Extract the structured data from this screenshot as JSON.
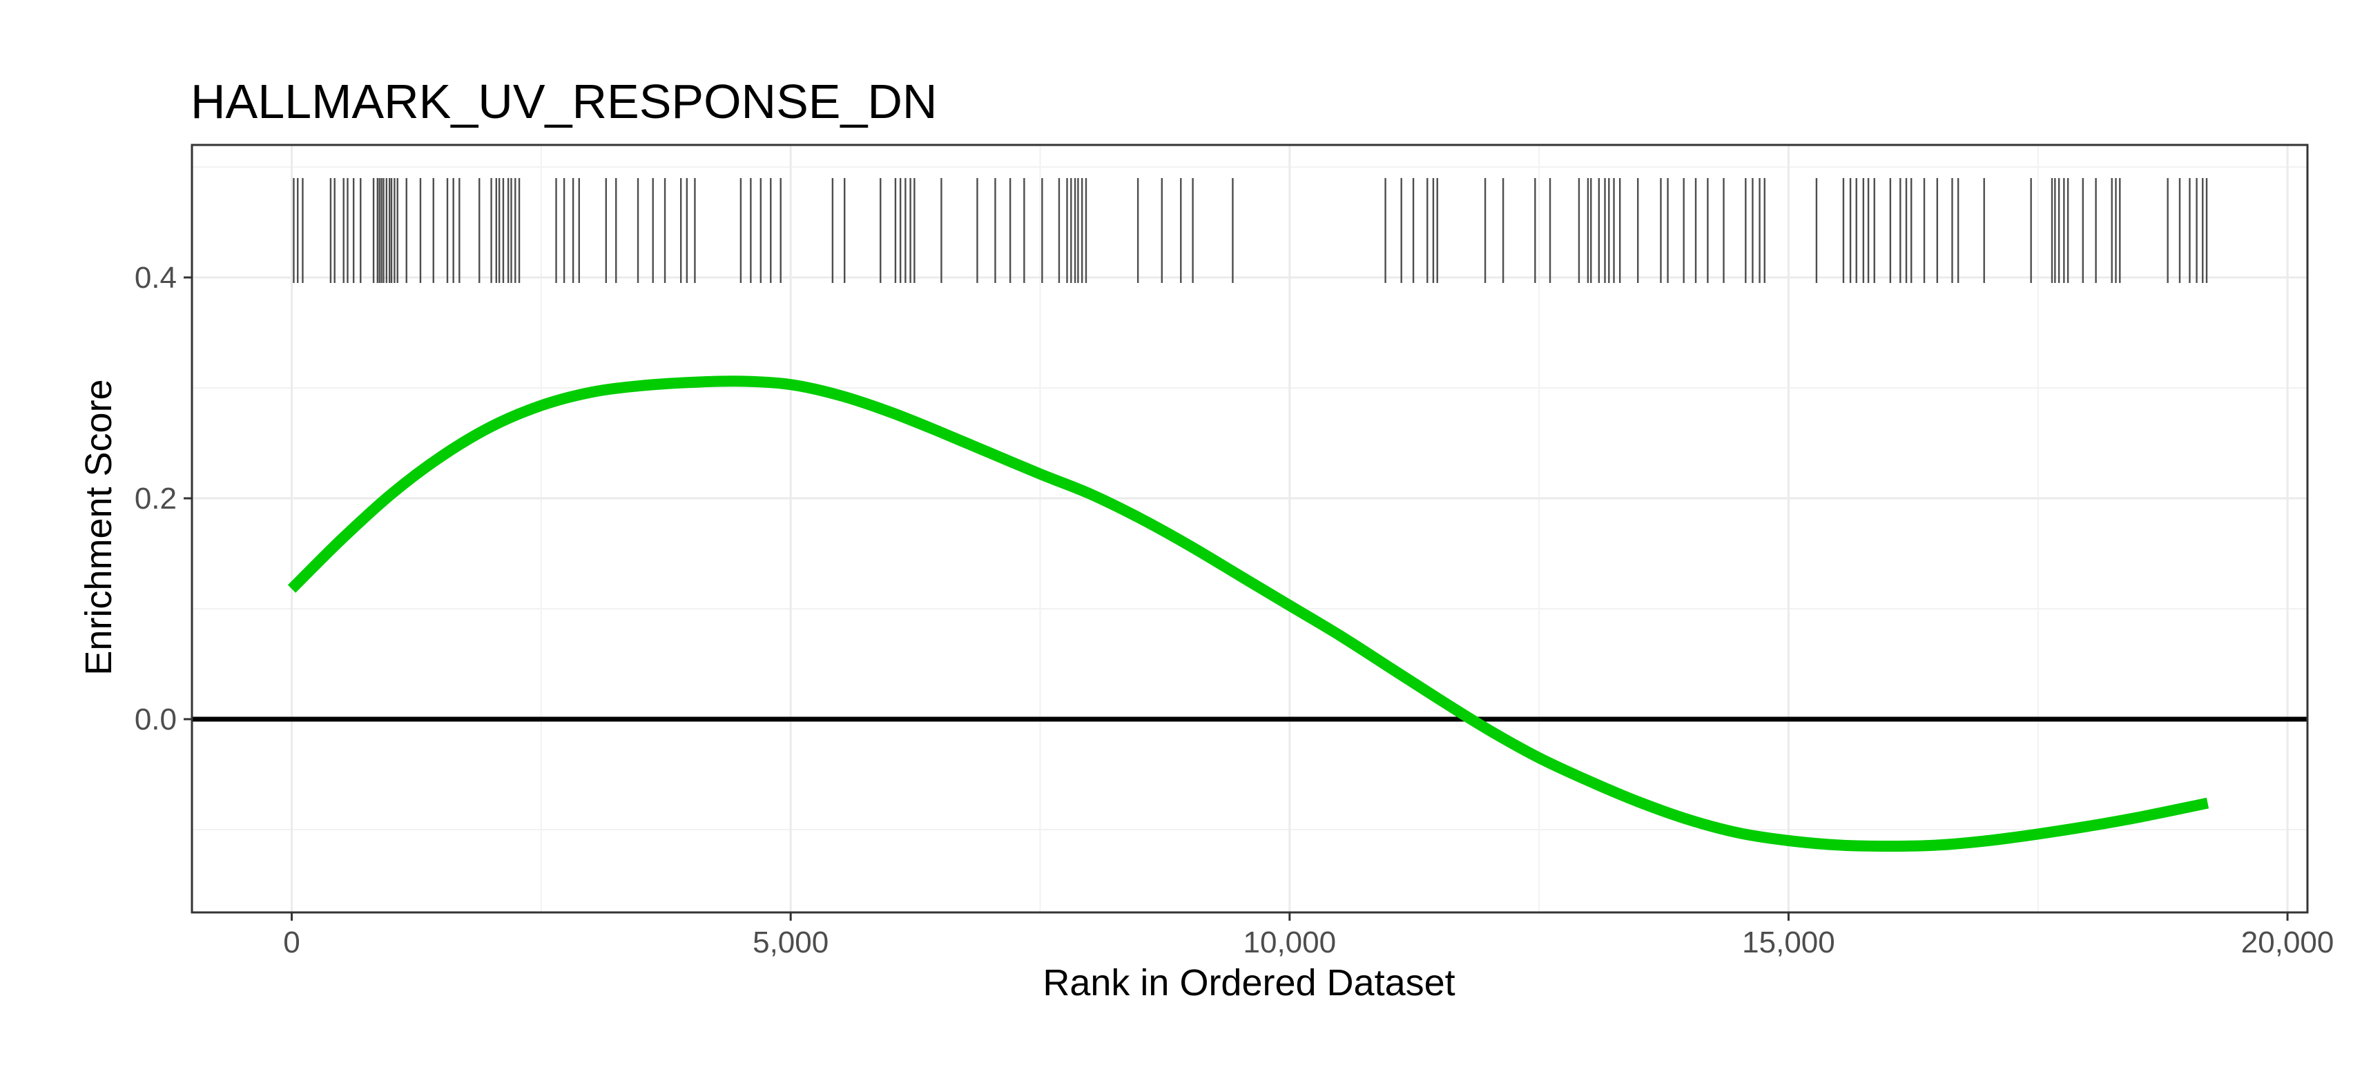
{
  "chart_data": {
    "type": "line",
    "title": "HALLMARK_UV_RESPONSE_DN",
    "xlabel": "Rank in Ordered Dataset",
    "ylabel": "Enrichment Score",
    "xlim": [
      -1000,
      20200
    ],
    "ylim": [
      -0.175,
      0.52
    ],
    "x_ticks": [
      0,
      5000,
      10000,
      15000,
      20000
    ],
    "x_tick_labels": [
      "0",
      "5,000",
      "10,000",
      "15,000",
      "20,000"
    ],
    "y_ticks": [
      0.0,
      0.2,
      0.4
    ],
    "y_tick_labels": [
      "0.0",
      "0.2",
      "0.4"
    ],
    "grid": true,
    "legend": "none",
    "reference_line_y": 0,
    "series": [
      {
        "color": "#00cc00",
        "x": [
          0,
          500,
          1000,
          1500,
          2000,
          2500,
          3000,
          3500,
          4000,
          4500,
          5000,
          5500,
          6000,
          6500,
          7000,
          7500,
          8000,
          8500,
          9000,
          9500,
          10000,
          10500,
          11000,
          11500,
          12000,
          12500,
          13000,
          13500,
          14000,
          14500,
          15000,
          15500,
          16000,
          16500,
          17000,
          17500,
          18000,
          18500,
          19200
        ],
        "y": [
          0.118,
          0.163,
          0.204,
          0.238,
          0.265,
          0.284,
          0.296,
          0.302,
          0.305,
          0.306,
          0.303,
          0.293,
          0.278,
          0.26,
          0.241,
          0.222,
          0.204,
          0.182,
          0.157,
          0.13,
          0.103,
          0.076,
          0.047,
          0.018,
          -0.01,
          -0.035,
          -0.056,
          -0.075,
          -0.091,
          -0.103,
          -0.11,
          -0.114,
          -0.115,
          -0.114,
          -0.11,
          -0.104,
          -0.097,
          -0.089,
          -0.076
        ]
      }
    ],
    "rug": {
      "y_range": [
        0.395,
        0.49
      ],
      "color": "#4d4d4d",
      "x": [
        20,
        60,
        110,
        390,
        430,
        520,
        560,
        620,
        690,
        820,
        860,
        880,
        900,
        920,
        950,
        980,
        1000,
        1030,
        1060,
        1150,
        1290,
        1420,
        1560,
        1620,
        1680,
        1880,
        2000,
        2050,
        2080,
        2120,
        2170,
        2200,
        2240,
        2280,
        2650,
        2730,
        2820,
        2880,
        3150,
        3250,
        3470,
        3620,
        3740,
        3900,
        3960,
        4040,
        4500,
        4600,
        4700,
        4800,
        4900,
        5420,
        5540,
        5900,
        6050,
        6100,
        6150,
        6200,
        6240,
        6510,
        6870,
        7050,
        7200,
        7340,
        7520,
        7690,
        7770,
        7810,
        7850,
        7880,
        7920,
        7960,
        8480,
        8720,
        8910,
        9030,
        9430,
        10960,
        11120,
        11240,
        11380,
        11440,
        11480,
        11960,
        12140,
        12460,
        12610,
        12900,
        12990,
        13020,
        13100,
        13160,
        13200,
        13250,
        13310,
        13490,
        13720,
        13790,
        13950,
        14070,
        14190,
        14350,
        14570,
        14640,
        14710,
        14760,
        15280,
        15550,
        15620,
        15680,
        15750,
        15800,
        15860,
        16020,
        16120,
        16180,
        16230,
        16360,
        16490,
        16640,
        16700,
        16960,
        17430,
        17640,
        17670,
        17710,
        17760,
        17800,
        17950,
        18080,
        18240,
        18280,
        18320,
        18800,
        18920,
        19020,
        19090,
        19150,
        19190
      ]
    }
  }
}
